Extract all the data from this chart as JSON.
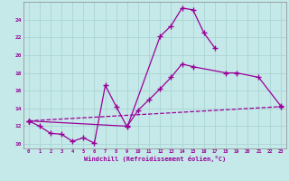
{
  "xlabel": "Windchill (Refroidissement éolien,°C)",
  "bg_color": "#c5e8e8",
  "line_color": "#990099",
  "grid_color": "#aad4d4",
  "xlim": [
    -0.5,
    23.5
  ],
  "ylim": [
    9.5,
    26.0
  ],
  "yticks": [
    10,
    12,
    14,
    16,
    18,
    20,
    22,
    24
  ],
  "xticks": [
    0,
    1,
    2,
    3,
    4,
    5,
    6,
    7,
    8,
    9,
    10,
    11,
    12,
    13,
    14,
    15,
    16,
    17,
    18,
    19,
    20,
    21,
    22,
    23
  ],
  "curve1_x": [
    0,
    1,
    2,
    3,
    4,
    5,
    6,
    7,
    8,
    9,
    12,
    13,
    14,
    15,
    16,
    17
  ],
  "curve1_y": [
    12.6,
    12.0,
    11.2,
    11.1,
    10.3,
    10.7,
    10.1,
    16.6,
    14.2,
    11.9,
    22.1,
    23.3,
    25.3,
    25.1,
    22.5,
    20.8
  ],
  "curve2_x": [
    0,
    9,
    10,
    11,
    12,
    13,
    14,
    15,
    18,
    19,
    21,
    23
  ],
  "curve2_y": [
    12.6,
    12.0,
    13.8,
    15.0,
    16.2,
    17.5,
    19.0,
    18.7,
    18.0,
    18.0,
    17.5,
    14.3
  ],
  "curve3_x": [
    0,
    23
  ],
  "curve3_y": [
    12.6,
    14.2
  ]
}
